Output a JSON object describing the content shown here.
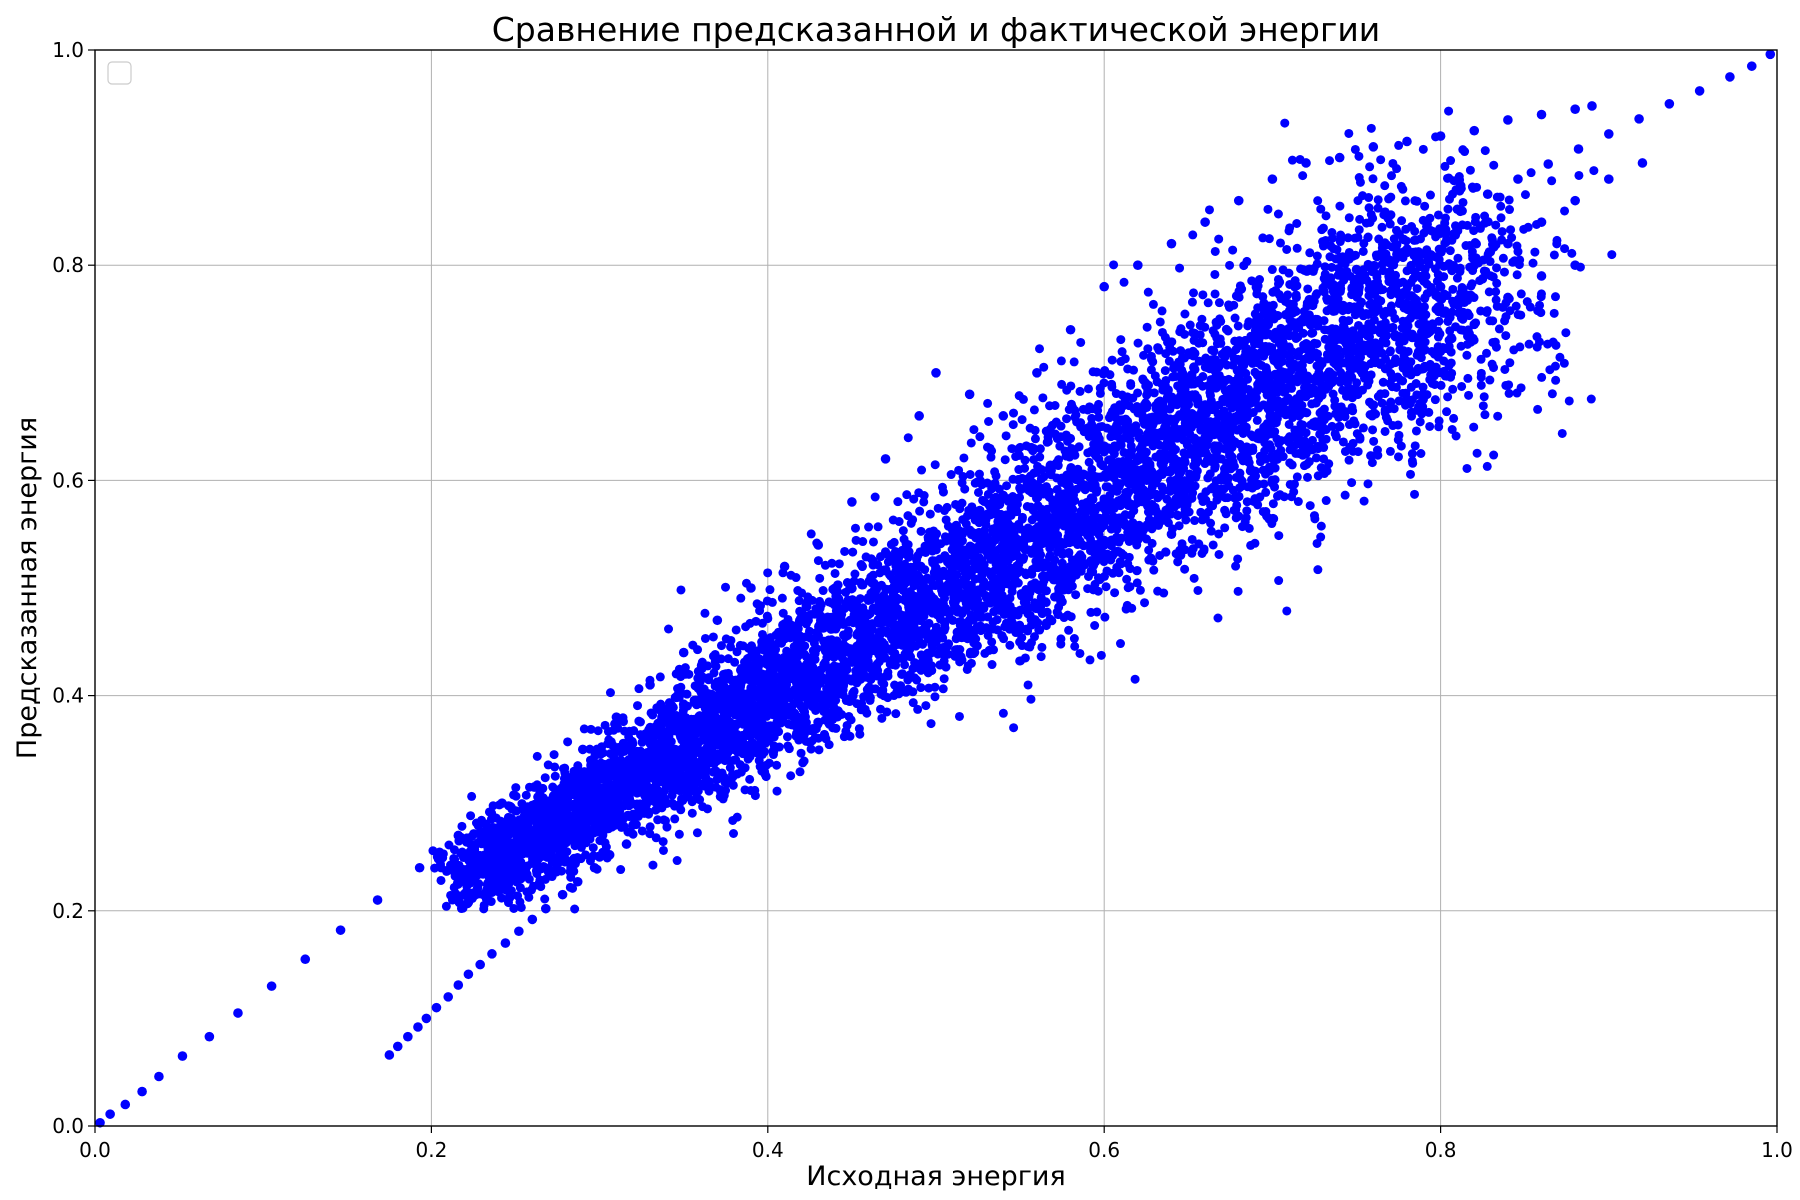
{
  "chart_data": {
    "type": "scatter",
    "title": "Сравнение предсказанной и фактической энергии",
    "xlabel": "Исходная энергия",
    "ylabel": "Предсказанная энергия",
    "xlim": [
      0.0,
      1.0
    ],
    "ylim": [
      0.0,
      1.0
    ],
    "x_ticks": [
      "0.0",
      "0.2",
      "0.4",
      "0.6",
      "0.8",
      "1.0"
    ],
    "y_ticks": [
      "0.0",
      "0.2",
      "0.4",
      "0.6",
      "0.8",
      "1.0"
    ],
    "grid": true,
    "legend": "top-left",
    "marker_color": "#0000ff",
    "series": [
      {
        "values": [
          [
            0.003,
            0.003
          ],
          [
            0.009,
            0.011
          ],
          [
            0.018,
            0.02
          ],
          [
            0.028,
            0.032
          ],
          [
            0.038,
            0.046
          ],
          [
            0.052,
            0.065
          ],
          [
            0.068,
            0.083
          ],
          [
            0.085,
            0.105
          ],
          [
            0.105,
            0.13
          ],
          [
            0.125,
            0.155
          ],
          [
            0.146,
            0.182
          ],
          [
            0.168,
            0.21
          ],
          [
            0.193,
            0.24
          ],
          [
            0.216,
            0.27
          ],
          [
            0.242,
            0.3
          ],
          [
            0.175,
            0.066
          ],
          [
            0.18,
            0.074
          ],
          [
            0.186,
            0.083
          ],
          [
            0.192,
            0.092
          ],
          [
            0.197,
            0.1
          ],
          [
            0.203,
            0.11
          ],
          [
            0.21,
            0.12
          ],
          [
            0.216,
            0.131
          ],
          [
            0.222,
            0.141
          ],
          [
            0.229,
            0.15
          ],
          [
            0.236,
            0.16
          ],
          [
            0.244,
            0.17
          ],
          [
            0.252,
            0.181
          ],
          [
            0.26,
            0.192
          ],
          [
            0.268,
            0.202
          ],
          [
            0.278,
            0.215
          ],
          [
            0.287,
            0.227
          ],
          [
            0.297,
            0.24
          ],
          [
            0.306,
            0.252
          ],
          [
            0.316,
            0.262
          ],
          [
            0.222,
            0.208
          ],
          [
            0.228,
            0.225
          ],
          [
            0.236,
            0.243
          ],
          [
            0.245,
            0.262
          ],
          [
            0.254,
            0.279
          ],
          [
            0.265,
            0.296
          ],
          [
            0.276,
            0.31
          ],
          [
            0.288,
            0.323
          ],
          [
            0.3,
            0.336
          ],
          [
            0.313,
            0.35
          ],
          [
            0.325,
            0.363
          ],
          [
            0.337,
            0.378
          ],
          [
            0.35,
            0.392
          ],
          [
            0.362,
            0.406
          ],
          [
            0.375,
            0.42
          ],
          [
            0.388,
            0.434
          ],
          [
            0.401,
            0.448
          ],
          [
            0.414,
            0.462
          ],
          [
            0.428,
            0.476
          ],
          [
            0.442,
            0.49
          ],
          [
            0.456,
            0.503
          ],
          [
            0.47,
            0.516
          ],
          [
            0.484,
            0.53
          ],
          [
            0.498,
            0.544
          ],
          [
            0.512,
            0.558
          ],
          [
            0.526,
            0.572
          ],
          [
            0.54,
            0.586
          ],
          [
            0.554,
            0.6
          ],
          [
            0.568,
            0.614
          ],
          [
            0.582,
            0.628
          ],
          [
            0.596,
            0.642
          ],
          [
            0.61,
            0.656
          ],
          [
            0.624,
            0.67
          ],
          [
            0.638,
            0.684
          ],
          [
            0.652,
            0.698
          ],
          [
            0.666,
            0.712
          ],
          [
            0.68,
            0.726
          ],
          [
            0.694,
            0.74
          ],
          [
            0.708,
            0.754
          ],
          [
            0.722,
            0.768
          ],
          [
            0.736,
            0.782
          ],
          [
            0.75,
            0.796
          ],
          [
            0.764,
            0.81
          ],
          [
            0.778,
            0.824
          ],
          [
            0.792,
            0.838
          ],
          [
            0.81,
            0.852
          ],
          [
            0.828,
            0.866
          ],
          [
            0.846,
            0.88
          ],
          [
            0.864,
            0.894
          ],
          [
            0.882,
            0.908
          ],
          [
            0.9,
            0.922
          ],
          [
            0.918,
            0.936
          ],
          [
            0.936,
            0.95
          ],
          [
            0.954,
            0.962
          ],
          [
            0.972,
            0.975
          ],
          [
            0.985,
            0.985
          ],
          [
            0.996,
            0.996
          ],
          [
            0.3,
            0.25
          ],
          [
            0.32,
            0.28
          ],
          [
            0.34,
            0.3
          ],
          [
            0.36,
            0.33
          ],
          [
            0.38,
            0.35
          ],
          [
            0.4,
            0.37
          ],
          [
            0.42,
            0.39
          ],
          [
            0.44,
            0.41
          ],
          [
            0.46,
            0.44
          ],
          [
            0.48,
            0.46
          ],
          [
            0.5,
            0.48
          ],
          [
            0.52,
            0.49
          ],
          [
            0.54,
            0.52
          ],
          [
            0.56,
            0.54
          ],
          [
            0.58,
            0.56
          ],
          [
            0.6,
            0.58
          ],
          [
            0.62,
            0.6
          ],
          [
            0.64,
            0.62
          ],
          [
            0.66,
            0.64
          ],
          [
            0.68,
            0.66
          ],
          [
            0.7,
            0.68
          ],
          [
            0.72,
            0.69
          ],
          [
            0.74,
            0.71
          ],
          [
            0.76,
            0.74
          ],
          [
            0.78,
            0.76
          ],
          [
            0.8,
            0.78
          ],
          [
            0.82,
            0.8
          ],
          [
            0.84,
            0.82
          ],
          [
            0.86,
            0.84
          ],
          [
            0.88,
            0.86
          ],
          [
            0.9,
            0.88
          ],
          [
            0.92,
            0.895
          ],
          [
            0.29,
            0.35
          ],
          [
            0.31,
            0.38
          ],
          [
            0.33,
            0.41
          ],
          [
            0.35,
            0.44
          ],
          [
            0.37,
            0.47
          ],
          [
            0.39,
            0.5
          ],
          [
            0.41,
            0.52
          ],
          [
            0.43,
            0.54
          ],
          [
            0.45,
            0.58
          ],
          [
            0.47,
            0.62
          ],
          [
            0.49,
            0.66
          ],
          [
            0.5,
            0.7
          ],
          [
            0.52,
            0.68
          ],
          [
            0.54,
            0.66
          ],
          [
            0.56,
            0.7
          ],
          [
            0.58,
            0.74
          ],
          [
            0.6,
            0.78
          ],
          [
            0.62,
            0.8
          ],
          [
            0.64,
            0.82
          ],
          [
            0.66,
            0.84
          ],
          [
            0.68,
            0.86
          ],
          [
            0.7,
            0.88
          ],
          [
            0.72,
            0.895
          ],
          [
            0.74,
            0.9
          ],
          [
            0.76,
            0.91
          ],
          [
            0.78,
            0.915
          ],
          [
            0.8,
            0.92
          ],
          [
            0.82,
            0.925
          ],
          [
            0.84,
            0.935
          ],
          [
            0.86,
            0.94
          ],
          [
            0.88,
            0.945
          ],
          [
            0.89,
            0.948
          ],
          [
            0.62,
            0.545
          ],
          [
            0.64,
            0.55
          ],
          [
            0.66,
            0.565
          ],
          [
            0.68,
            0.585
          ],
          [
            0.7,
            0.6
          ],
          [
            0.72,
            0.625
          ],
          [
            0.74,
            0.65
          ],
          [
            0.76,
            0.67
          ],
          [
            0.78,
            0.7
          ],
          [
            0.8,
            0.72
          ],
          [
            0.82,
            0.745
          ],
          [
            0.84,
            0.77
          ],
          [
            0.86,
            0.79
          ],
          [
            0.88,
            0.8
          ],
          [
            0.52,
            0.47
          ],
          [
            0.54,
            0.48
          ],
          [
            0.56,
            0.5
          ],
          [
            0.58,
            0.52
          ],
          [
            0.6,
            0.54
          ],
          [
            0.42,
            0.37
          ],
          [
            0.44,
            0.38
          ],
          [
            0.46,
            0.4
          ],
          [
            0.48,
            0.42
          ],
          [
            0.5,
            0.45
          ]
        ]
      }
    ]
  }
}
